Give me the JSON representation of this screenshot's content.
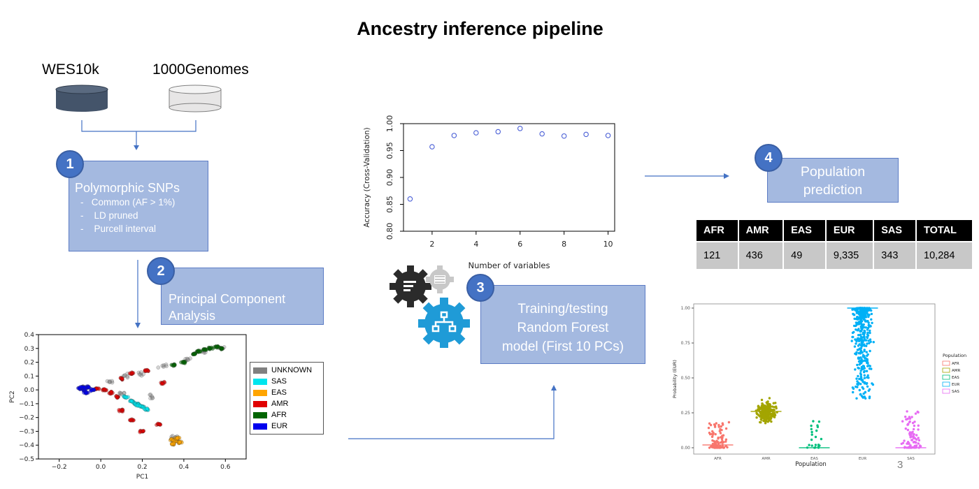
{
  "title": "Ancestry inference pipeline",
  "sources": {
    "left_label": "WES10k",
    "right_label": "1000Genomes"
  },
  "step1": {
    "number": "1",
    "title": "Polymorphic SNPs",
    "bullets": [
      "Common (AF > 1%)",
      "LD pruned",
      "Purcell interval"
    ]
  },
  "step2": {
    "number": "2",
    "title_line1": "Principal Component",
    "title_line2": "Analysis"
  },
  "step3": {
    "number": "3",
    "line1": "Training/testing",
    "line2": "Random Forest",
    "line3": "model (First 10 PCs)"
  },
  "step4": {
    "number": "4",
    "line1": "Population",
    "line2": "prediction"
  },
  "prediction_table": {
    "headers": [
      "AFR",
      "AMR",
      "EAS",
      "EUR",
      "SAS",
      "TOTAL"
    ],
    "values": [
      "121",
      "436",
      "49",
      "9,335",
      "343",
      "10,284"
    ]
  },
  "page_number": "3",
  "colors": {
    "box_fill": "#a4b9e0",
    "circle": "#4472c4",
    "arrow": "#4472c4",
    "wes_cylinder": "#44546a",
    "genomes_cylinder": "#e7e6e6"
  },
  "chart_data": [
    {
      "type": "scatter",
      "title": "",
      "xlabel": "PC1",
      "ylabel": "PC2",
      "xlim": [
        -0.3,
        0.7
      ],
      "ylim": [
        -0.5,
        0.4
      ],
      "x_ticks": [
        "−0.2",
        "0.0",
        "0.2",
        "0.4",
        "0.6"
      ],
      "y_ticks": [
        "0.4",
        "0.3",
        "0.2",
        "0.1",
        "0.0",
        "−0.1",
        "−0.2",
        "−0.3",
        "−0.4",
        "−0.5"
      ],
      "legend_position": "right",
      "series": [
        {
          "name": "UNKNOWN",
          "color": "#808080",
          "points": [
            [
              -0.08,
              0.02
            ],
            [
              0.05,
              0.06
            ],
            [
              0.12,
              0.1
            ],
            [
              0.2,
              0.12
            ],
            [
              0.3,
              0.17
            ],
            [
              0.42,
              0.22
            ],
            [
              0.5,
              0.28
            ],
            [
              0.58,
              0.3
            ],
            [
              0.1,
              -0.02
            ],
            [
              0.25,
              -0.05
            ],
            [
              0.36,
              -0.34
            ]
          ]
        },
        {
          "name": "SAS",
          "color": "#00e5ee",
          "points": [
            [
              0.12,
              -0.05
            ],
            [
              0.15,
              -0.08
            ],
            [
              0.17,
              -0.1
            ],
            [
              0.2,
              -0.12
            ],
            [
              0.22,
              -0.14
            ],
            [
              0.18,
              -0.11
            ]
          ]
        },
        {
          "name": "EAS",
          "color": "#ffa500",
          "points": [
            [
              0.34,
              -0.36
            ],
            [
              0.36,
              -0.37
            ],
            [
              0.38,
              -0.38
            ],
            [
              0.37,
              -0.35
            ],
            [
              0.35,
              -0.39
            ]
          ]
        },
        {
          "name": "AMR",
          "color": "#e00000",
          "points": [
            [
              -0.02,
              0.01
            ],
            [
              0.02,
              0.0
            ],
            [
              0.05,
              -0.02
            ],
            [
              0.08,
              -0.05
            ],
            [
              0.1,
              0.08
            ],
            [
              0.15,
              0.12
            ],
            [
              0.22,
              0.14
            ],
            [
              0.1,
              -0.15
            ],
            [
              0.15,
              -0.22
            ],
            [
              0.2,
              -0.3
            ],
            [
              0.28,
              -0.25
            ],
            [
              0.3,
              0.05
            ]
          ]
        },
        {
          "name": "AFR",
          "color": "#006400",
          "points": [
            [
              0.47,
              0.28
            ],
            [
              0.5,
              0.29
            ],
            [
              0.53,
              0.3
            ],
            [
              0.56,
              0.31
            ],
            [
              0.58,
              0.3
            ],
            [
              0.45,
              0.26
            ],
            [
              0.4,
              0.2
            ],
            [
              0.35,
              0.18
            ]
          ]
        },
        {
          "name": "EUR",
          "color": "#0000ee",
          "points": [
            [
              -0.1,
              0.01
            ],
            [
              -0.08,
              0.0
            ],
            [
              -0.06,
              0.02
            ],
            [
              -0.04,
              0.0
            ],
            [
              -0.07,
              -0.02
            ],
            [
              -0.09,
              0.02
            ]
          ]
        }
      ]
    },
    {
      "type": "scatter",
      "title": "",
      "xlabel": "Number of variables",
      "ylabel": "Accuracy (Cross-Validation)",
      "xlim": [
        0.7,
        10.3
      ],
      "ylim": [
        0.8,
        1.0
      ],
      "x_ticks": [
        "2",
        "4",
        "6",
        "8",
        "10"
      ],
      "y_ticks": [
        "0.80",
        "0.85",
        "0.90",
        "0.95",
        "1.00"
      ],
      "x": [
        1,
        2,
        3,
        4,
        5,
        6,
        7,
        8,
        9,
        10
      ],
      "values": [
        0.86,
        0.957,
        0.978,
        0.983,
        0.985,
        0.991,
        0.981,
        0.977,
        0.98,
        0.978
      ],
      "point_color": "#4a5fd6"
    },
    {
      "type": "scatter",
      "title": "",
      "xlabel": "Population",
      "ylabel": "Probability (EUR)",
      "ylim": [
        0,
        1
      ],
      "categories": [
        "AFR",
        "AMR",
        "EAS",
        "EUR",
        "SAS"
      ],
      "y_ticks": [
        "1.00",
        "0.75",
        "0.50",
        "0.25",
        "0.00"
      ],
      "legend_title": "Population",
      "legend_position": "right",
      "series": [
        {
          "name": "AFR",
          "color": "#f8766d",
          "range": [
            0.0,
            0.19
          ],
          "median": 0.02
        },
        {
          "name": "AMR",
          "color": "#a3a500",
          "range": [
            0.0,
            0.43
          ],
          "median": 0.26
        },
        {
          "name": "EAS",
          "color": "#00bf7d",
          "range": [
            0.0,
            0.2
          ],
          "median": 0.0
        },
        {
          "name": "EUR",
          "color": "#00b0f6",
          "range": [
            0.35,
            1.0
          ],
          "median": 1.0
        },
        {
          "name": "SAS",
          "color": "#e76bf3",
          "range": [
            0.0,
            0.28
          ],
          "median": 0.0
        }
      ]
    }
  ]
}
